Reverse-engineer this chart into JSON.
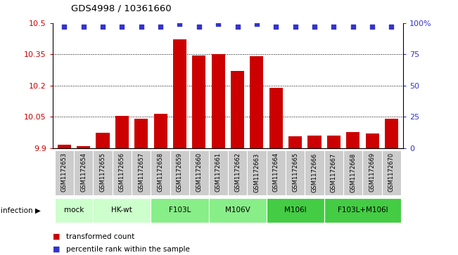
{
  "title": "GDS4998 / 10361660",
  "samples": [
    "GSM1172653",
    "GSM1172654",
    "GSM1172655",
    "GSM1172656",
    "GSM1172657",
    "GSM1172658",
    "GSM1172659",
    "GSM1172660",
    "GSM1172661",
    "GSM1172662",
    "GSM1172663",
    "GSM1172664",
    "GSM1172665",
    "GSM1172666",
    "GSM1172667",
    "GSM1172668",
    "GSM1172669",
    "GSM1172670"
  ],
  "bar_values": [
    9.915,
    9.908,
    9.972,
    10.052,
    10.04,
    10.065,
    10.42,
    10.345,
    10.35,
    10.27,
    10.34,
    10.19,
    9.955,
    9.96,
    9.958,
    9.975,
    9.97,
    10.04
  ],
  "dot_values": [
    97,
    97,
    97,
    97,
    97,
    97,
    99,
    97,
    99,
    97,
    99,
    97,
    97,
    97,
    97,
    97,
    97,
    97
  ],
  "bar_color": "#cc0000",
  "dot_color": "#3333cc",
  "ylim_left": [
    9.9,
    10.5
  ],
  "ylim_right": [
    0,
    100
  ],
  "yticks_left": [
    9.9,
    10.05,
    10.2,
    10.35,
    10.5
  ],
  "yticks_right": [
    0,
    25,
    50,
    75,
    100
  ],
  "ytick_right_labels": [
    "0",
    "25",
    "50",
    "75",
    "100%"
  ],
  "bar_width": 0.7,
  "bar_color_hex": "#cc0000",
  "dot_color_hex": "#3333cc",
  "left_tick_color": "#cc0000",
  "right_tick_color": "#3333cc",
  "group_spans": [
    {
      "label": "mock",
      "cols": [
        0,
        1
      ],
      "color": "#ccffcc"
    },
    {
      "label": "HK-wt",
      "cols": [
        2,
        3,
        4
      ],
      "color": "#ccffcc"
    },
    {
      "label": "F103L",
      "cols": [
        5,
        6,
        7
      ],
      "color": "#88ee88"
    },
    {
      "label": "M106V",
      "cols": [
        8,
        9,
        10
      ],
      "color": "#88ee88"
    },
    {
      "label": "M106I",
      "cols": [
        11,
        12,
        13
      ],
      "color": "#44cc44"
    },
    {
      "label": "F103L+M106I",
      "cols": [
        14,
        15,
        16,
        17
      ],
      "color": "#44cc44"
    }
  ],
  "cell_color": "#cccccc",
  "cell_border_color": "white"
}
